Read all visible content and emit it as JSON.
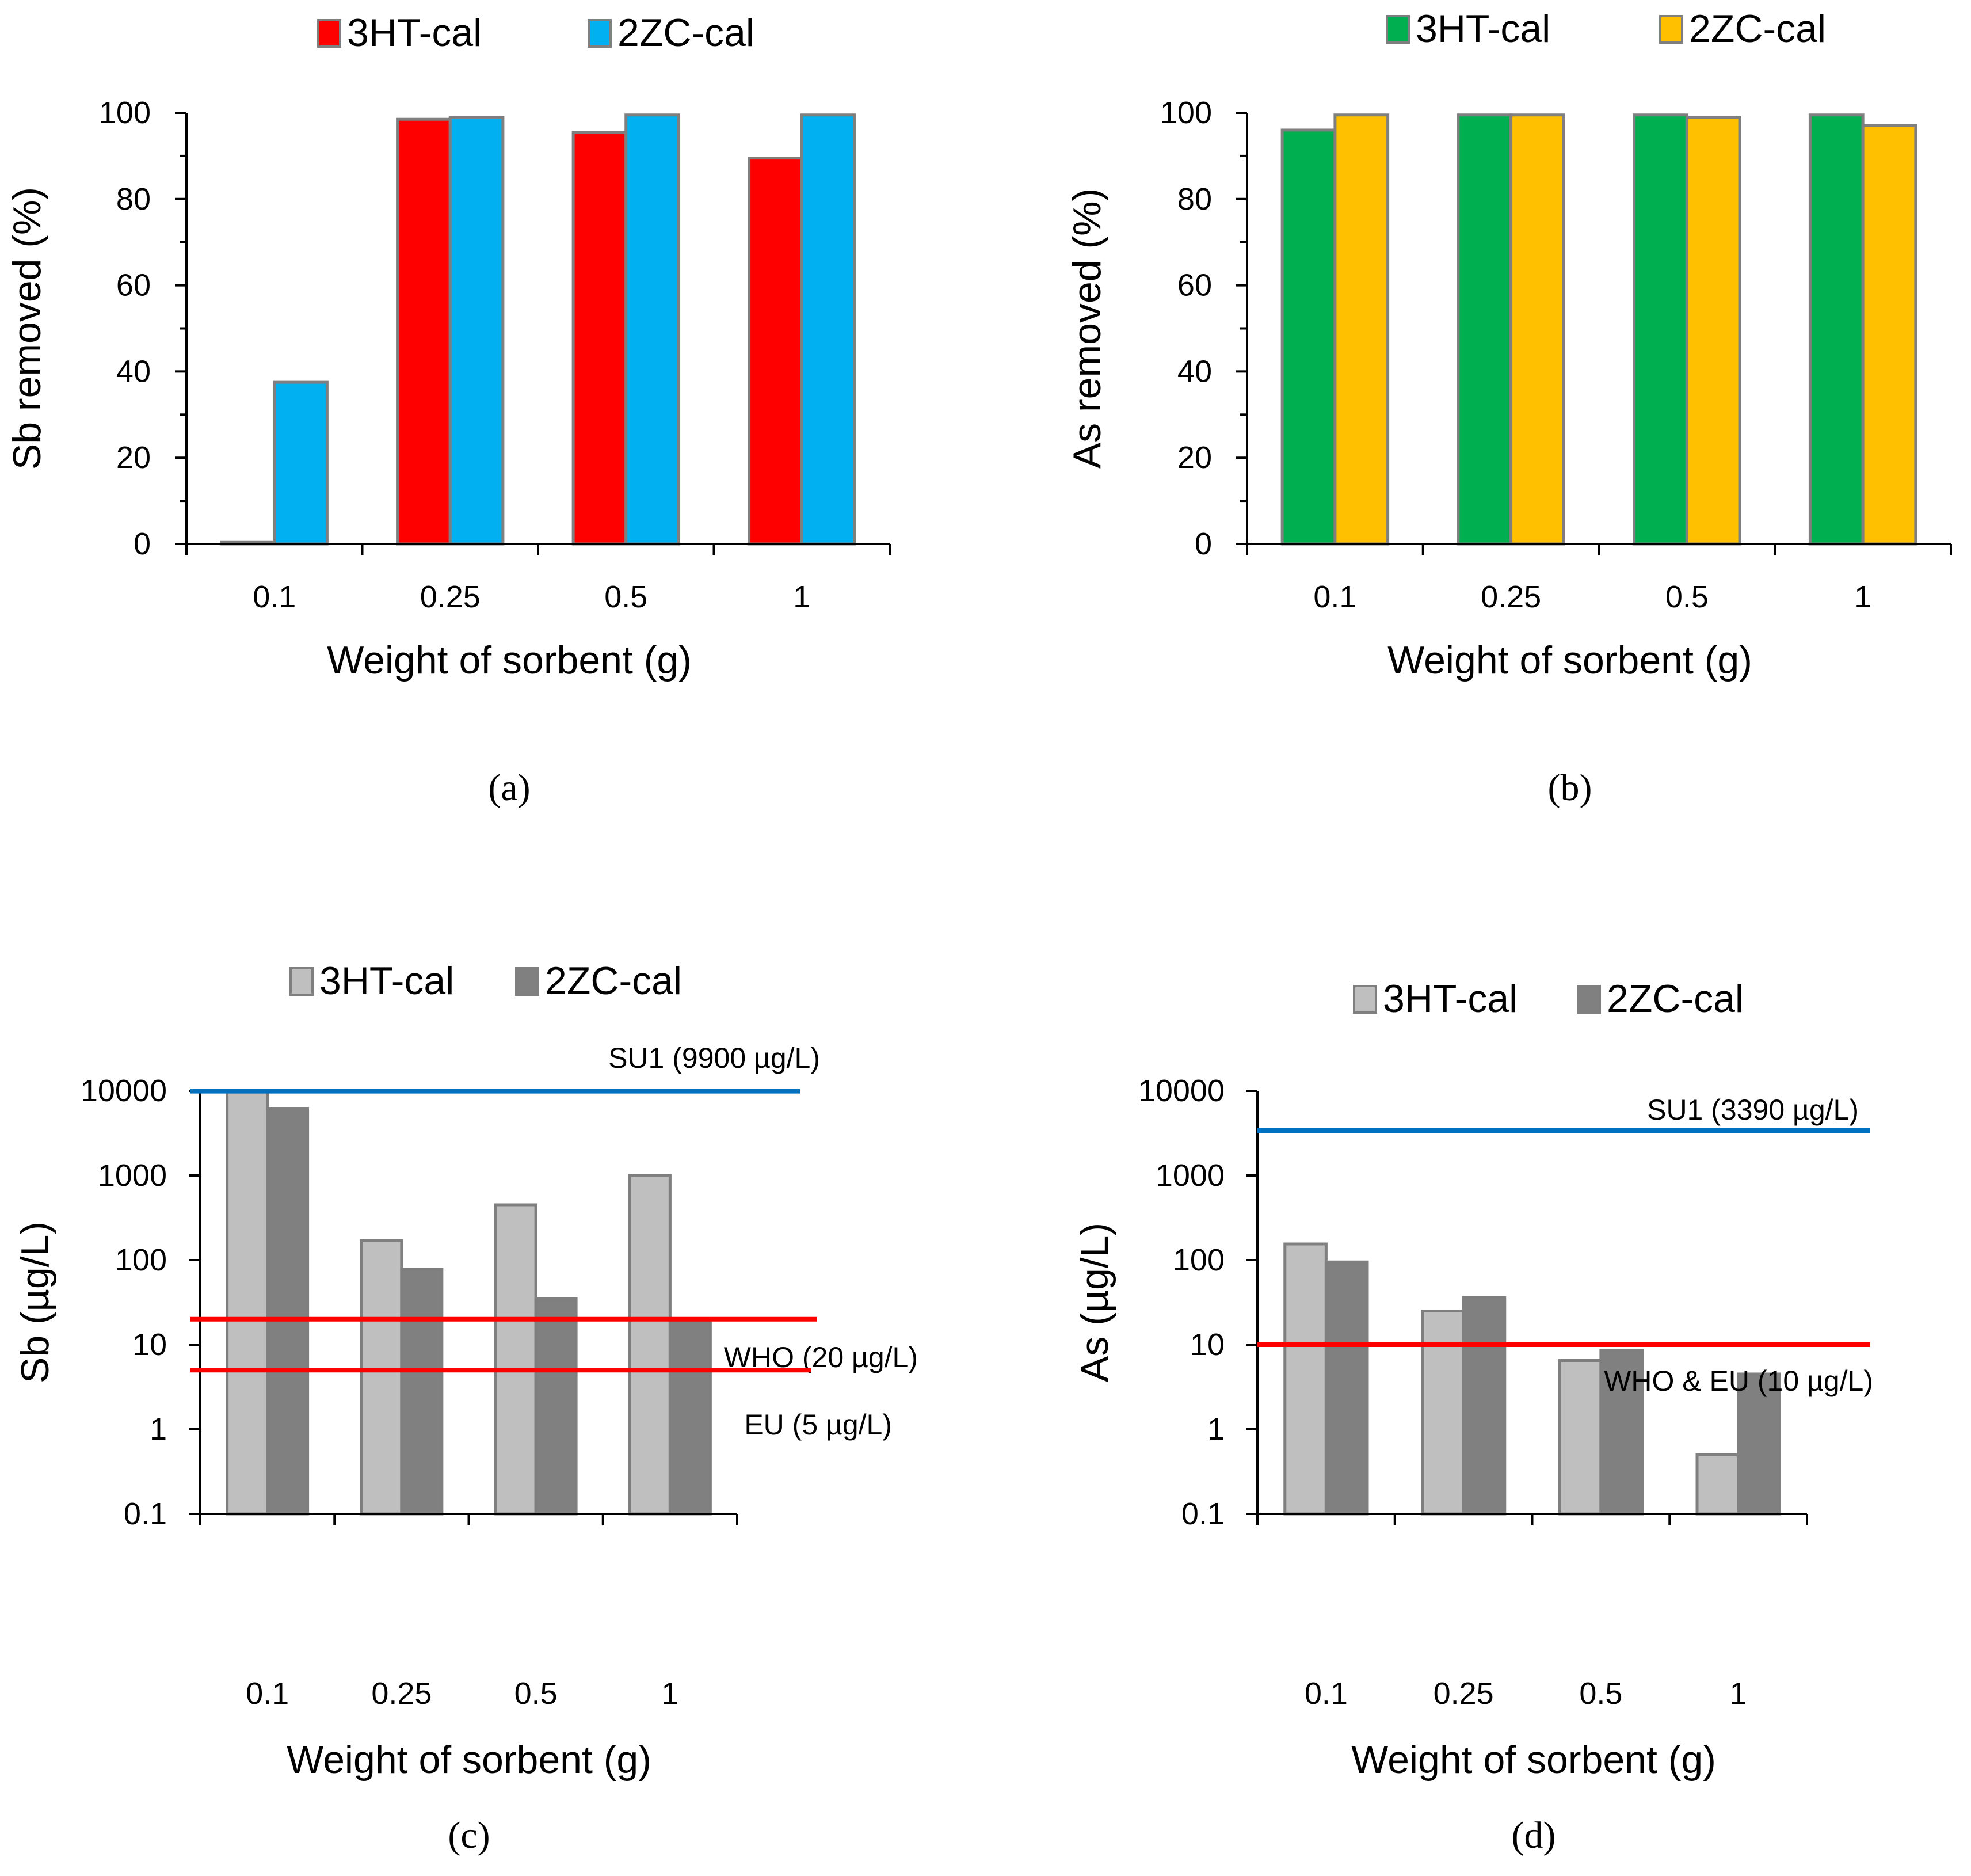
{
  "chart_data": [
    {
      "panel": "(a)",
      "type": "bar",
      "scale": "linear",
      "categories": [
        "0.1",
        "0.25",
        "0.5",
        "1"
      ],
      "series": [
        {
          "name": "3HT-cal",
          "color": "#ff0000",
          "values": [
            0.5,
            98.5,
            95.5,
            89.5
          ]
        },
        {
          "name": "2ZC-cal",
          "color": "#00b0f0",
          "values": [
            37.5,
            99,
            99.5,
            99.5
          ]
        }
      ],
      "xlabel": "Weight of sorbent (g)",
      "ylabel": "Sb removed (%)",
      "ylim": [
        0,
        100
      ],
      "yticks": [
        "0",
        "20",
        "40",
        "60",
        "80",
        "100"
      ],
      "legend_position": "top",
      "reference_lines": []
    },
    {
      "panel": "(b)",
      "type": "bar",
      "scale": "linear",
      "categories": [
        "0.1",
        "0.25",
        "0.5",
        "1"
      ],
      "series": [
        {
          "name": "3HT-cal",
          "color": "#00b050",
          "values": [
            96,
            99.5,
            99.5,
            99.5
          ]
        },
        {
          "name": "2ZC-cal",
          "color": "#ffc000",
          "values": [
            99.5,
            99.5,
            99,
            97
          ]
        }
      ],
      "xlabel": "Weight of sorbent (g)",
      "ylabel": "As removed (%)",
      "ylim": [
        0,
        100
      ],
      "yticks": [
        "0",
        "20",
        "40",
        "60",
        "80",
        "100"
      ],
      "legend_position": "top",
      "reference_lines": []
    },
    {
      "panel": "(c)",
      "type": "bar",
      "scale": "log",
      "categories": [
        "0.1",
        "0.25",
        "0.5",
        "1"
      ],
      "series": [
        {
          "name": "3HT-cal",
          "color": "#bfbfbf",
          "values": [
            9900,
            170,
            450,
            1000
          ]
        },
        {
          "name": "2ZC-cal",
          "color": "#808080",
          "values": [
            6200,
            78,
            35,
            20
          ]
        }
      ],
      "xlabel": "Weight of sorbent (g)",
      "ylabel": "Sb (µg/L)",
      "ylim": [
        0.1,
        10000
      ],
      "yticks": [
        "0.1",
        "1",
        "10",
        "100",
        "1000",
        "10000"
      ],
      "legend_position": "top",
      "reference_lines": [
        {
          "label": "SU1 (9900  µg/L)",
          "value": 9900,
          "color": "#0070c0"
        },
        {
          "label": "WHO (20 µg/L)",
          "value": 20,
          "color": "#ff0000"
        },
        {
          "label": "EU (5 µg/L)",
          "value": 5,
          "color": "#ff0000"
        }
      ]
    },
    {
      "panel": "(d)",
      "type": "bar",
      "scale": "log",
      "categories": [
        "0.1",
        "0.25",
        "0.5",
        "1"
      ],
      "series": [
        {
          "name": "3HT-cal",
          "color": "#bfbfbf",
          "values": [
            155,
            25,
            6.5,
            0.5
          ]
        },
        {
          "name": "2ZC-cal",
          "color": "#808080",
          "values": [
            95,
            36,
            8.5,
            4.5
          ]
        }
      ],
      "xlabel": "Weight of sorbent (g)",
      "ylabel": "As (µg/L)",
      "ylim": [
        0.1,
        10000
      ],
      "yticks": [
        "0.1",
        "1",
        "10",
        "100",
        "1000",
        "10000"
      ],
      "legend_position": "top",
      "reference_lines": [
        {
          "label": "SU1 (3390  µg/L)",
          "value": 3390,
          "color": "#0070c0"
        },
        {
          "label": "WHO & EU (10 µg/L)",
          "value": 10,
          "color": "#ff0000"
        }
      ]
    }
  ]
}
